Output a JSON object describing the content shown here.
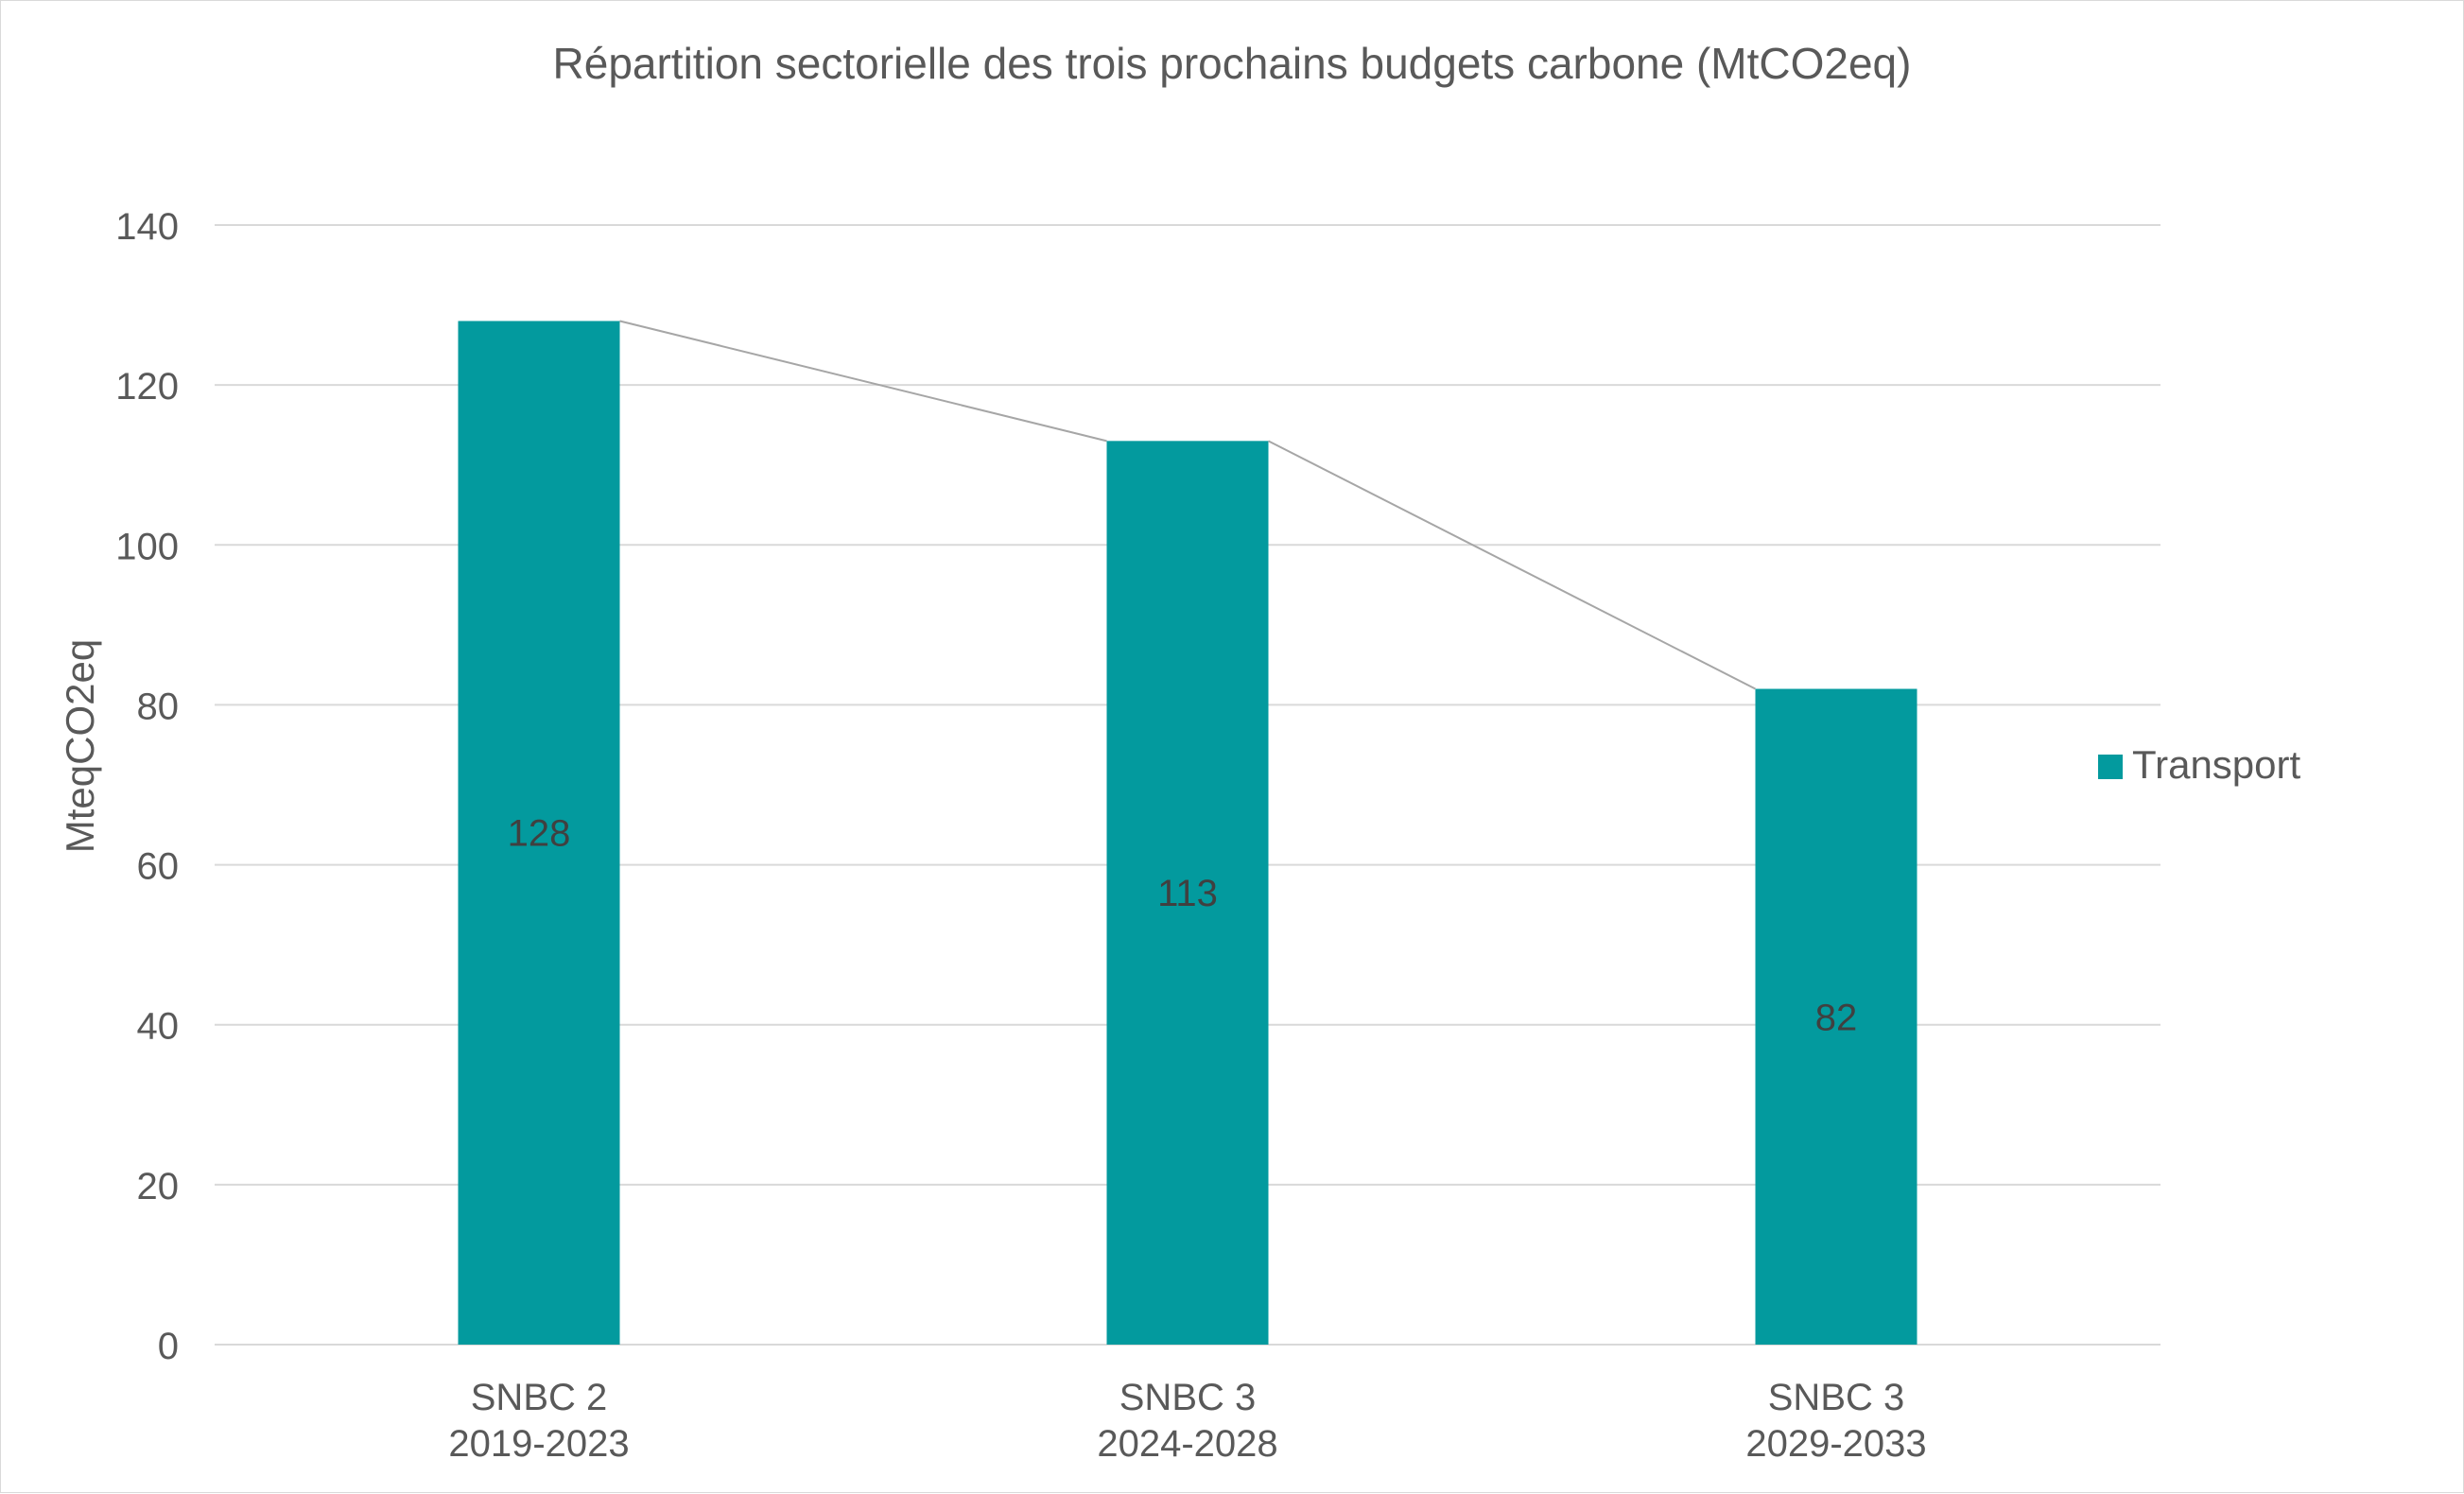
{
  "chart_data": {
    "type": "bar",
    "title": "Répartition sectorielle des trois prochains budgets carbone (MtCO2eq)",
    "ylabel": "MteqCO2eq",
    "xlabel": "",
    "categories": [
      [
        "SNBC 2",
        "2019-2023"
      ],
      [
        "SNBC 3",
        "2024-2028"
      ],
      [
        "SNBC 3",
        "2029-2033"
      ]
    ],
    "series": [
      {
        "name": "Transport",
        "values": [
          128,
          113,
          82
        ],
        "color": "#039a9e"
      }
    ],
    "data_labels": [
      "128",
      "113",
      "82"
    ],
    "ylim": [
      0,
      140
    ],
    "yticks": [
      0,
      20,
      40,
      60,
      80,
      100,
      120,
      140
    ],
    "grid": true,
    "legend": {
      "placement": "right"
    },
    "trend_line": {
      "connects": "bar tops",
      "color": "#a6a6a6"
    }
  }
}
